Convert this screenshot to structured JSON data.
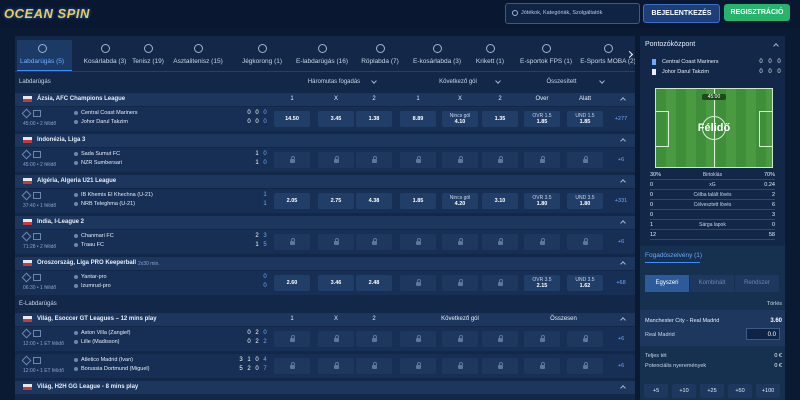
{
  "header": {
    "logo": "OCEAN SPIN",
    "search_placeholder": "Jótékok, Kategóriák, Szolgáltatók",
    "login": "BEJELENTKEZÉS",
    "register": "REGISZTRÁCIÓ"
  },
  "sport_tabs": [
    "Labdarúgás (5)",
    "Kosárlabda (3)",
    "Tenisz (19)",
    "Asztalitenisz (15)",
    "Jégkorong (1)",
    "E-labdarúgás (16)",
    "Röplabda (7)",
    "E-kosárlabda (3)",
    "Krikett (1)",
    "E-sportok FPS (1)",
    "E-Sports MOBA (2)"
  ],
  "sections": [
    {
      "title": "Labdarúgás",
      "markets": [
        "Háromutas fogadás",
        "Következő gól",
        "Összesített"
      ],
      "columns": [
        "1",
        "X",
        "2",
        "1",
        "X",
        "2",
        "Over",
        "Alatt"
      ],
      "leagues": [
        {
          "name": "Ázsia, AFC Champions League",
          "matches": [
            {
              "time": "45:00 • 2 félidő",
              "home": "Central Coast Mariners",
              "away": "Johor Darul Takzim",
              "home_score": [
                "0",
                "0",
                "0"
              ],
              "away_score": [
                "0",
                "0",
                "0"
              ],
              "odds": [
                "14.50",
                "3.45",
                "1.38",
                "8.89",
                {
                  "label": "Nincs gól",
                  "value": "4.10"
                },
                "1.35",
                {
                  "label": "OVR 1.5",
                  "value": "1.85"
                },
                {
                  "label": "UND 1.5",
                  "value": "1.85"
                }
              ],
              "more": "+277"
            }
          ]
        },
        {
          "name": "Indonézia, Liga 3",
          "matches": [
            {
              "time": "45:00 • 2 félidő",
              "home": "Sada Sumut FC",
              "away": "NZR Sumbersari",
              "home_score": [
                "1",
                "0"
              ],
              "away_score": [
                "1",
                "0"
              ],
              "odds": [
                null,
                null,
                null,
                null,
                null,
                null,
                null,
                null
              ],
              "more": "+6"
            }
          ]
        },
        {
          "name": "Algéria, Algeria U21 League",
          "matches": [
            {
              "time": "37:40 • 1 félidő",
              "home": "IB Khemis El Khechna (U-21)",
              "away": "NRB Teleghma (U-21)",
              "home_score": [
                "1"
              ],
              "away_score": [
                "1"
              ],
              "odds": [
                "2.05",
                "2.75",
                "4.38",
                "1.85",
                {
                  "label": "Nincs gól",
                  "value": "4.20"
                },
                "3.10",
                {
                  "label": "OVR 3.5",
                  "value": "1.80"
                },
                {
                  "label": "UND 3.5",
                  "value": "1.80"
                }
              ],
              "more": "+331"
            }
          ]
        },
        {
          "name": "India, I-League 2",
          "matches": [
            {
              "time": "71:28 • 2 félidő",
              "home": "Chanmari FC",
              "away": "Traau FC",
              "home_score": [
                "2",
                "3"
              ],
              "away_score": [
                "1",
                "5"
              ],
              "odds": [
                null,
                null,
                null,
                null,
                null,
                null,
                null,
                null
              ],
              "more": "+6"
            }
          ]
        },
        {
          "name": "Oroszország, Liga PRO Keeperball",
          "note": "2x30 min.",
          "matches": [
            {
              "time": "06:30 • 1 félidő",
              "home": "Yantar-pro",
              "away": "Izumrud-pro",
              "home_score": [
                "0"
              ],
              "away_score": [
                "0"
              ],
              "odds": [
                "2.60",
                "3.46",
                "2.48",
                null,
                null,
                null,
                {
                  "label": "OVR 3.5",
                  "value": "2.15"
                },
                {
                  "label": "UND 3.5",
                  "value": "1.62"
                }
              ],
              "more": "+68"
            }
          ]
        }
      ]
    },
    {
      "title": "E-Labdarúgás",
      "columns": [
        "1",
        "X",
        "2",
        "Következő gól",
        "Összesen"
      ],
      "leagues": [
        {
          "name": "Világ, Esoccer GT Leagues – 12 mins play",
          "matches": [
            {
              "time": "12:00 • 1 ET félidő",
              "home": "Aston Villa (Zangief)",
              "away": "Lille (Madisson)",
              "home_score": [
                "0",
                "2",
                "0"
              ],
              "away_score": [
                "0",
                "2",
                "2"
              ],
              "odds": [
                null,
                null,
                null,
                null,
                null,
                null,
                null,
                null
              ],
              "more": "+6"
            },
            {
              "time": "12:00 • 1 ET félidő",
              "home": "Atletico Madrid (Ivan)",
              "away": "Borussia Dortmund (Miguel)",
              "home_score": [
                "3",
                "1",
                "0",
                "4"
              ],
              "away_score": [
                "5",
                "2",
                "0",
                "7"
              ],
              "odds": [
                null,
                null,
                null,
                null,
                null,
                null,
                null,
                null
              ],
              "more": "+6"
            }
          ]
        },
        {
          "name": "Világ, H2H GG League - 8 mins play",
          "matches": []
        }
      ]
    }
  ],
  "scoreboard": {
    "title": "Pontozóközpont",
    "teams": [
      {
        "name": "Central Coast Mariners",
        "scores": [
          "0",
          "0",
          "0"
        ]
      },
      {
        "name": "Johor Darul Takzim",
        "scores": [
          "0",
          "0",
          "0"
        ]
      }
    ],
    "clock": "45:00",
    "status": "Félidő",
    "stats": [
      {
        "left": "30%",
        "label": "Birtoklás",
        "right": "70%"
      },
      {
        "left": "0",
        "label": "xG",
        "right": "0.24"
      },
      {
        "left": "0",
        "label": "Célba talált lövés",
        "right": "2"
      },
      {
        "left": "0",
        "label": "Célvesztett lövés",
        "right": "6"
      },
      {
        "left": "0",
        "right": "3"
      },
      {
        "left": "1",
        "label": "Sárga lapok",
        "right": "0"
      },
      {
        "left": "12",
        "right": "58"
      }
    ]
  },
  "betslip": {
    "title": "Fogadószelvény (1)",
    "tabs": [
      "Egyszeri",
      "Kombinált",
      "Rendszer"
    ],
    "clear": "Törlés",
    "selection": {
      "match": "Manchester City - Real Madrid",
      "odds": "3.60",
      "pick": "Real Madrid",
      "stake": "0.0"
    },
    "total_stake_label": "Teljes tét",
    "total_stake": "0 €",
    "potential_label": "Potenciális nyeremények",
    "potential": "0 €",
    "quick_stakes": [
      "+5",
      "+10",
      "+25",
      "+50",
      "+100"
    ]
  }
}
